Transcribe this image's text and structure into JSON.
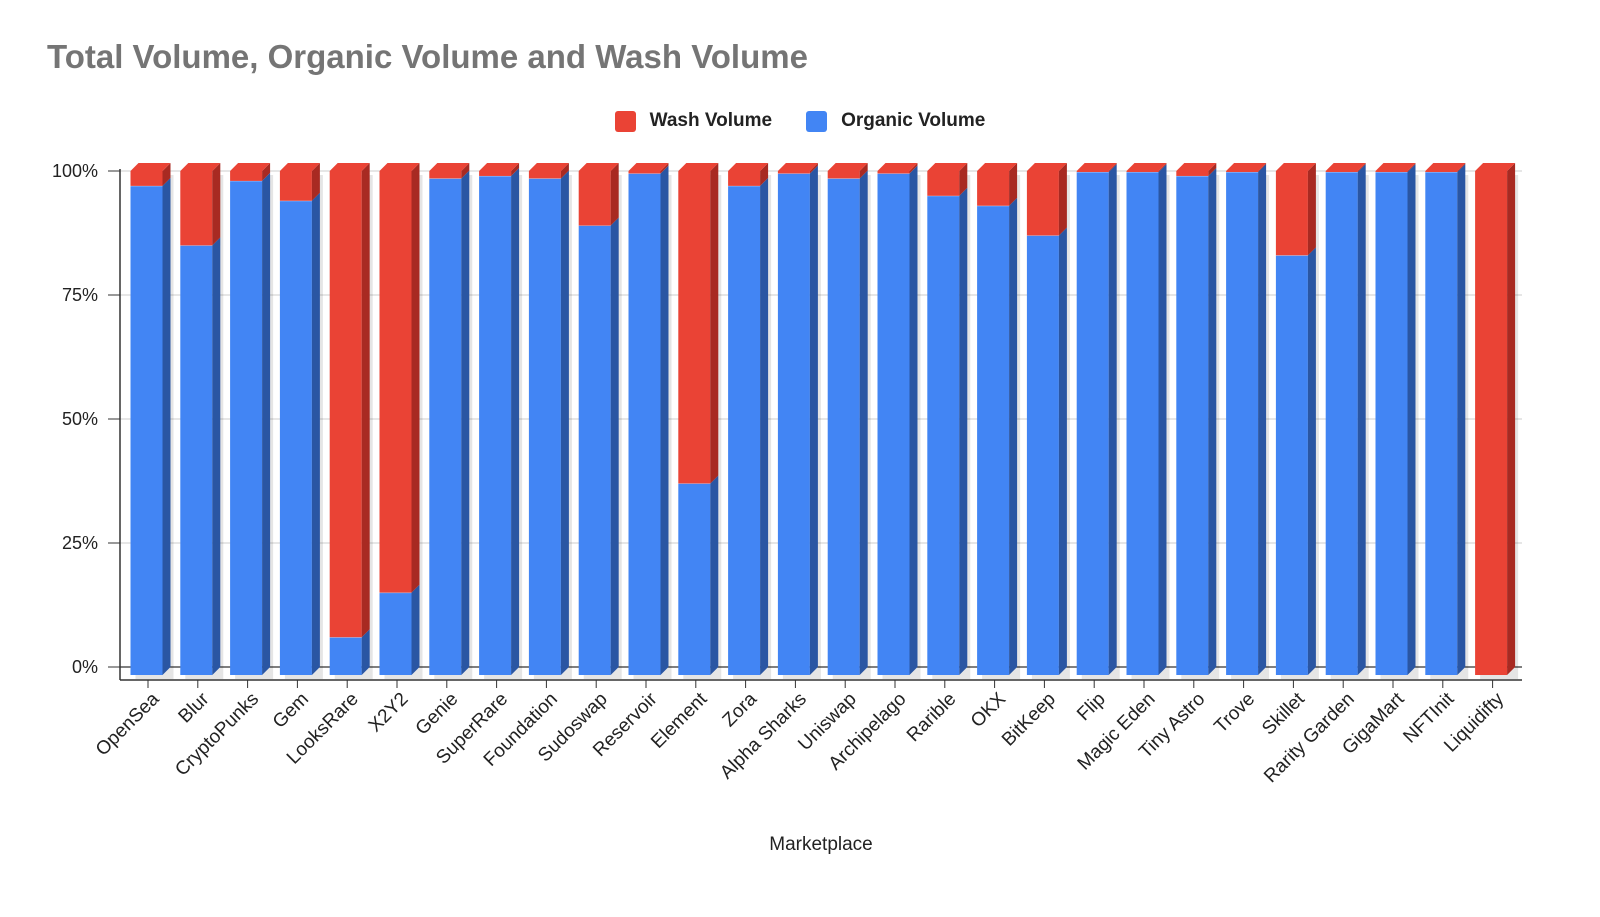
{
  "chart_data": {
    "type": "bar",
    "stacked": true,
    "stack_mode": "percent",
    "title": "Total Volume, Organic Volume and Wash Volume",
    "xlabel": "Marketplace",
    "ylabel": "",
    "ylim": [
      0,
      100
    ],
    "y_ticks": [
      "0%",
      "25%",
      "50%",
      "75%",
      "100%"
    ],
    "y_tick_values": [
      0,
      25,
      50,
      75,
      100
    ],
    "legend_position": "top",
    "grid": true,
    "categories": [
      "OpenSea",
      "Blur",
      "CryptoPunks",
      "Gem",
      "LooksRare",
      "X2Y2",
      "Genie",
      "SuperRare",
      "Foundation",
      "Sudoswap",
      "Reservoir",
      "Element",
      "Zora",
      "Alpha Sharks",
      "Uniswap",
      "Archipelago",
      "Rarible",
      "OKX",
      "BitKeep",
      "Flip",
      "Magic Eden",
      "Tiny Astro",
      "Trove",
      "Skillet",
      "Rarity Garden",
      "GigaMart",
      "NFTInit",
      "Liquidifty"
    ],
    "series": [
      {
        "name": "Organic Volume",
        "color": "#4285f4",
        "side_color": "#2a56a3",
        "values": [
          97,
          85,
          98,
          94,
          6,
          15,
          98.5,
          99,
          98.5,
          89,
          99.5,
          37,
          97,
          99.5,
          98.5,
          99.5,
          95,
          93,
          87,
          99.8,
          99.8,
          99,
          99.8,
          83,
          99.8,
          99.8,
          99.8,
          0
        ]
      },
      {
        "name": "Wash Volume",
        "color": "#ea4335",
        "side_color": "#a82a22",
        "values": [
          3,
          15,
          2,
          6,
          94,
          85,
          1.5,
          1,
          1.5,
          11,
          0.5,
          63,
          3,
          0.5,
          1.5,
          0.5,
          5,
          7,
          13,
          0.2,
          0.2,
          1,
          0.2,
          17,
          0.2,
          0.2,
          0.2,
          100
        ]
      }
    ]
  },
  "legend": {
    "items": [
      {
        "label": "Wash Volume",
        "color": "#ea4335"
      },
      {
        "label": "Organic Volume",
        "color": "#4285f4"
      }
    ]
  }
}
